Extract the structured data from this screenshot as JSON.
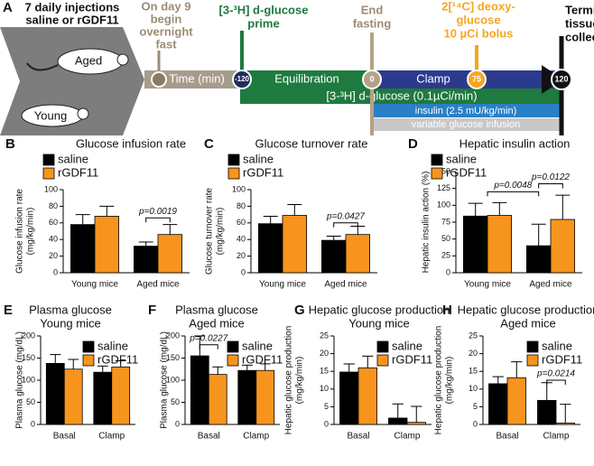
{
  "diagram": {
    "label": "A",
    "injections": [
      "7 daily injections",
      "saline or rGDF11"
    ],
    "groups": [
      "Aged",
      "Young"
    ],
    "fast": [
      "On day 9",
      "begin",
      "overnight",
      "fast"
    ],
    "time_label": "Time (min)",
    "prime": [
      "[3-³H] d-glucose",
      "prime"
    ],
    "end_fasting": [
      "End",
      "fasting"
    ],
    "bolus": [
      "2[¹⁴C] deoxy-",
      "glucose",
      "10  µCi bolus"
    ],
    "terminal": [
      "Terminal",
      "tissue",
      "collection"
    ],
    "timepoints": [
      "-120",
      "0",
      "75",
      "120"
    ],
    "phases": [
      "Equilibration",
      "Clamp"
    ],
    "infusions": [
      "[3-³H] d-glucose (0.1µCi/min)",
      "insulin (2.5 mU/kg/min)",
      "variable glucose infusion"
    ]
  },
  "chart_data": [
    {
      "type": "bar",
      "panel": "B",
      "title": "Glucose infusion rate",
      "y_label": [
        "Glucose infusion rate",
        "(mg/kg/min)"
      ],
      "categories": [
        "Young mice",
        "Aged mice"
      ],
      "series": [
        {
          "name": "saline",
          "color": "#000000",
          "values": [
            58,
            32
          ],
          "errors": [
            12,
            5
          ]
        },
        {
          "name": "rGDF11",
          "color": "#f7941d",
          "values": [
            68,
            46
          ],
          "errors": [
            12,
            12
          ]
        }
      ],
      "ylim": [
        0,
        100
      ],
      "yticks": [
        0,
        20,
        40,
        60,
        80,
        100
      ],
      "annotations": [
        "p=0.0019"
      ]
    },
    {
      "type": "bar",
      "panel": "C",
      "title": "Glucose turnover rate",
      "y_label": [
        "Glucose turnover rate",
        "(mg/kg/min)"
      ],
      "categories": [
        "Young mice",
        "Aged mice"
      ],
      "series": [
        {
          "name": "saline",
          "color": "#000000",
          "values": [
            59,
            39
          ],
          "errors": [
            9,
            5
          ]
        },
        {
          "name": "rGDF11",
          "color": "#f7941d",
          "values": [
            69,
            46
          ],
          "errors": [
            13,
            10
          ]
        }
      ],
      "ylim": [
        0,
        100
      ],
      "yticks": [
        0,
        20,
        40,
        60,
        80,
        100
      ],
      "annotations": [
        "p=0.0427"
      ]
    },
    {
      "type": "bar",
      "panel": "D",
      "title": "Hepatic insulin action",
      "y_label": [
        "Hepatic insulin action (%)"
      ],
      "categories": [
        "Young mice",
        "Aged mice"
      ],
      "series": [
        {
          "name": "saline",
          "color": "#000000",
          "values": [
            84,
            40
          ],
          "errors": [
            19,
            32
          ]
        },
        {
          "name": "rGDF11",
          "color": "#f7941d",
          "values": [
            85,
            79
          ],
          "errors": [
            19,
            36
          ]
        }
      ],
      "ylim": [
        0,
        150
      ],
      "yticks": [
        0,
        25,
        50,
        75,
        100,
        125,
        150
      ],
      "annotations": [
        "p=0.0048",
        "p=0.0122"
      ]
    },
    {
      "type": "bar",
      "panel": "E",
      "title": "Plasma glucose",
      "subtitle": "Young mice",
      "y_label": [
        "Plasma glucose (mg/dL)"
      ],
      "categories": [
        "Basal",
        "Clamp"
      ],
      "series": [
        {
          "name": "saline",
          "color": "#000000",
          "values": [
            138,
            118
          ],
          "errors": [
            20,
            14
          ]
        },
        {
          "name": "rGDF11",
          "color": "#f7941d",
          "values": [
            125,
            130
          ],
          "errors": [
            22,
            14
          ]
        }
      ],
      "ylim": [
        0,
        200
      ],
      "yticks": [
        0,
        50,
        100,
        150,
        200
      ],
      "annotations": []
    },
    {
      "type": "bar",
      "panel": "F",
      "title": "Plasma glucose",
      "subtitle": "Aged mice",
      "y_label": [
        "Plasma glucose (mg/dL)"
      ],
      "categories": [
        "Basal",
        "Clamp"
      ],
      "series": [
        {
          "name": "saline",
          "color": "#000000",
          "values": [
            155,
            122
          ],
          "errors": [
            45,
            12
          ]
        },
        {
          "name": "rGDF11",
          "color": "#f7941d",
          "values": [
            113,
            122
          ],
          "errors": [
            17,
            15
          ]
        }
      ],
      "ylim": [
        0,
        200
      ],
      "yticks": [
        0,
        50,
        100,
        150,
        200
      ],
      "annotations": [
        "p=0.0227"
      ]
    },
    {
      "type": "bar",
      "panel": "G",
      "title": "Hepatic glucose production",
      "subtitle": "Young mice",
      "y_label": [
        "Hepatic glucose production",
        "(mg/kg/min)"
      ],
      "categories": [
        "Basal",
        "Clamp"
      ],
      "series": [
        {
          "name": "saline",
          "color": "#000000",
          "values": [
            14.8,
            1.8
          ],
          "errors": [
            2.3,
            4
          ]
        },
        {
          "name": "rGDF11",
          "color": "#f7941d",
          "values": [
            16,
            0.6
          ],
          "errors": [
            3.3,
            4.5
          ]
        }
      ],
      "ylim": [
        0,
        25
      ],
      "yticks": [
        0,
        5,
        10,
        15,
        20,
        25
      ],
      "annotations": []
    },
    {
      "type": "bar",
      "panel": "H",
      "title": "Hepatic glucose production",
      "subtitle": "Aged mice",
      "y_label": [
        "Hepatic glucose production",
        "(mg/kg/min)"
      ],
      "categories": [
        "Basal",
        "Clamp"
      ],
      "series": [
        {
          "name": "saline",
          "color": "#000000",
          "values": [
            11.5,
            6.8
          ],
          "errors": [
            2,
            5
          ]
        },
        {
          "name": "rGDF11",
          "color": "#f7941d",
          "values": [
            13.2,
            0.4
          ],
          "errors": [
            4.5,
            5.3
          ]
        }
      ],
      "ylim": [
        0,
        25
      ],
      "yticks": [
        0,
        5,
        10,
        15,
        20,
        25
      ],
      "annotations": [
        "p=0.0214"
      ]
    }
  ]
}
